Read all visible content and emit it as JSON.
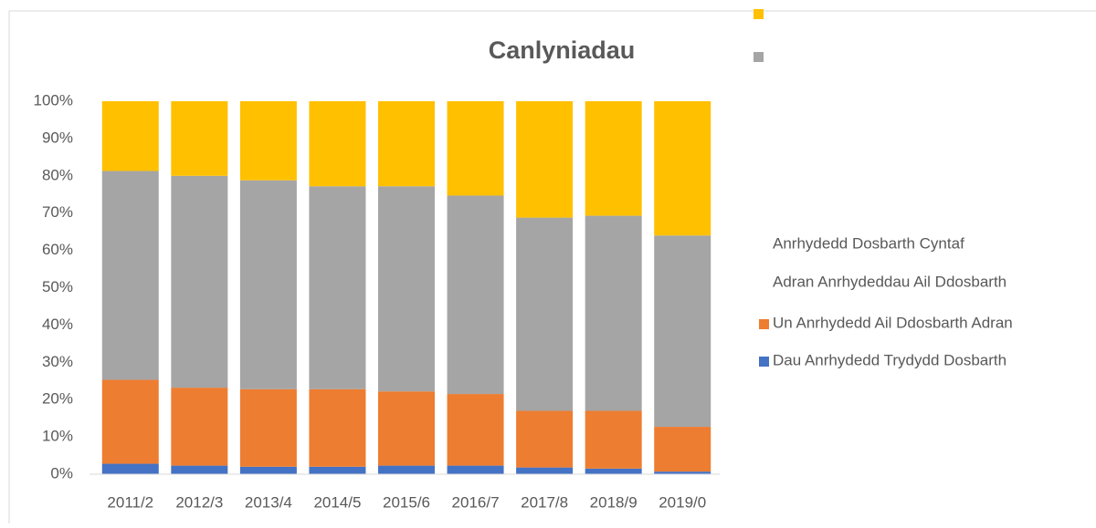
{
  "chart_data": {
    "type": "bar",
    "stacked": true,
    "title": "Canlyniadau",
    "categories": [
      "2011/2",
      "2012/3",
      "2013/4",
      "2014/5",
      "2015/6",
      "2016/7",
      "2017/8",
      "2018/9",
      "2019/0"
    ],
    "series": [
      {
        "name": "Dau Anrhydedd Trydydd Dosbarth",
        "color": "#4472c4",
        "values": [
          2.8,
          2.3,
          2.0,
          2.0,
          2.3,
          2.3,
          1.8,
          1.5,
          0.7
        ]
      },
      {
        "name": "Un Anrhydedd Ail Ddosbarth Adran",
        "color": "#ed7d31",
        "values": [
          22.5,
          20.9,
          20.8,
          20.8,
          19.9,
          19.2,
          15.2,
          15.5,
          12.0
        ]
      },
      {
        "name": "Adran Anrhydeddau Ail Ddosbarth",
        "color": "#a5a5a5",
        "values": [
          56.0,
          56.8,
          56.0,
          54.4,
          55.0,
          53.2,
          51.8,
          52.3,
          51.3
        ]
      },
      {
        "name": "Anrhydedd Dosbarth Cyntaf",
        "color": "#ffc000",
        "values": [
          18.7,
          20.0,
          21.2,
          22.8,
          22.8,
          25.3,
          31.2,
          30.7,
          36.0
        ]
      }
    ],
    "ylim": [
      0,
      100
    ],
    "yticks": [
      {
        "value": 0,
        "label": "0%"
      },
      {
        "value": 10,
        "label": "10%"
      },
      {
        "value": 20,
        "label": "20%"
      },
      {
        "value": 30,
        "label": "30%"
      },
      {
        "value": 40,
        "label": "40%"
      },
      {
        "value": 50,
        "label": "50%"
      },
      {
        "value": 60,
        "label": "60%"
      },
      {
        "value": 70,
        "label": "70%"
      },
      {
        "value": 80,
        "label": "80%"
      },
      {
        "value": 90,
        "label": "90%"
      },
      {
        "value": 100,
        "label": "100%"
      }
    ],
    "grid": false,
    "legend": "right"
  }
}
